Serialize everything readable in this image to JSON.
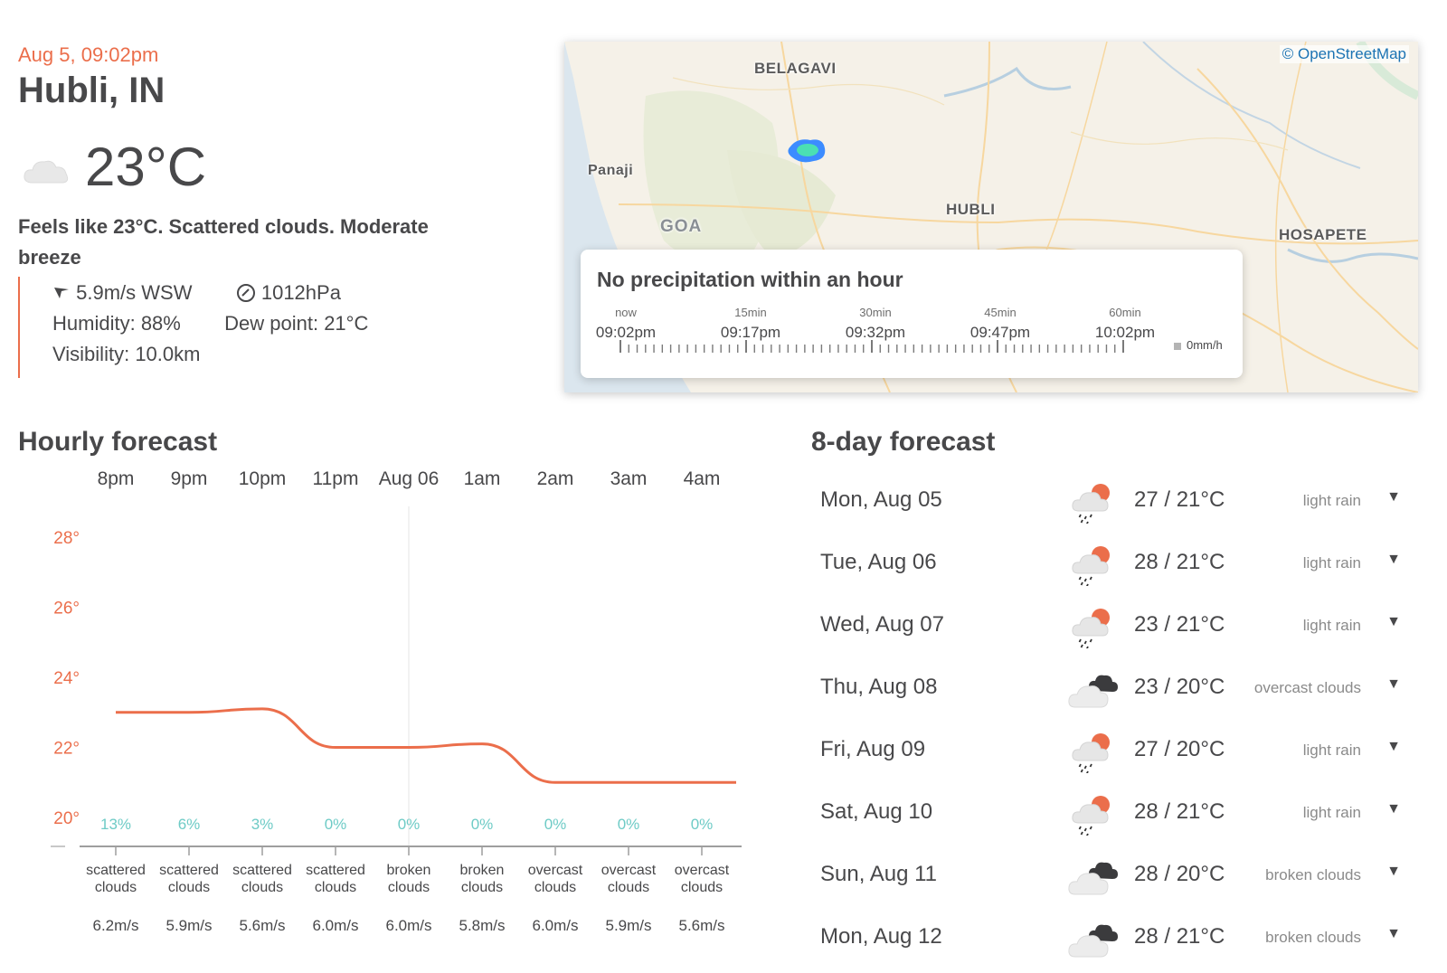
{
  "current": {
    "datetime": "Aug 5, 09:02pm",
    "city": "Hubli, IN",
    "icon": "cloud-icon",
    "temp": "23°C",
    "feels_like": "Feels like 23°C. Scattered clouds. Moderate breeze",
    "wind": "5.9m/s WSW",
    "pressure": "1012hPa",
    "humidity_label": "Humidity:",
    "humidity": "88%",
    "dew_label": "Dew point:",
    "dew": "21°C",
    "visibility_label": "Visibility:",
    "visibility": "10.0km"
  },
  "map": {
    "attribution": "© OpenStreetMap",
    "labels": [
      "BELAGAVI",
      "Panaji",
      "GOA",
      "HUBLI",
      "HOSAPETE"
    ]
  },
  "precipitation": {
    "title": "No precipitation within an hour",
    "steps": [
      {
        "label": "now",
        "time": "09:02pm"
      },
      {
        "label": "15min",
        "time": "09:17pm"
      },
      {
        "label": "30min",
        "time": "09:32pm"
      },
      {
        "label": "45min",
        "time": "09:47pm"
      },
      {
        "label": "60min",
        "time": "10:02pm"
      }
    ],
    "legend": "0mm/h"
  },
  "hourly": {
    "title": "Hourly forecast"
  },
  "daily": {
    "title": "8-day forecast",
    "days": [
      {
        "date": "Mon, Aug 05",
        "temp": "27 / 21°C",
        "desc": "light rain",
        "icon": "rain-icon"
      },
      {
        "date": "Tue, Aug 06",
        "temp": "28 / 21°C",
        "desc": "light rain",
        "icon": "rain-icon"
      },
      {
        "date": "Wed, Aug 07",
        "temp": "23 / 21°C",
        "desc": "light rain",
        "icon": "rain-icon"
      },
      {
        "date": "Thu, Aug 08",
        "temp": "23 / 20°C",
        "desc": "overcast clouds",
        "icon": "overcast-clouds-icon"
      },
      {
        "date": "Fri, Aug 09",
        "temp": "27 / 20°C",
        "desc": "light rain",
        "icon": "rain-icon"
      },
      {
        "date": "Sat, Aug 10",
        "temp": "28 / 21°C",
        "desc": "light rain",
        "icon": "rain-icon"
      },
      {
        "date": "Sun, Aug 11",
        "temp": "28 / 20°C",
        "desc": "broken clouds",
        "icon": "broken-clouds-icon"
      },
      {
        "date": "Mon, Aug 12",
        "temp": "28 / 21°C",
        "desc": "broken clouds",
        "icon": "broken-clouds-icon"
      }
    ]
  },
  "colors": {
    "accent": "#eb6e4b",
    "precip_text": "#6ecbc6",
    "text": "#48484a"
  },
  "chart_data": {
    "type": "line",
    "x": [
      "8pm",
      "9pm",
      "10pm",
      "11pm",
      "Aug 06",
      "1am",
      "2am",
      "3am",
      "4am"
    ],
    "series": [
      {
        "values": [
          23,
          23,
          23.1,
          22,
          22,
          22.1,
          21,
          21,
          21
        ]
      }
    ],
    "y_ticks": [
      "28°",
      "26°",
      "24°",
      "22°",
      "20°"
    ],
    "ylim": [
      20,
      28
    ],
    "precipitation_probability": [
      "13%",
      "6%",
      "3%",
      "0%",
      "0%",
      "0%",
      "0%",
      "0%",
      "0%"
    ],
    "conditions": [
      [
        "scattered",
        "clouds"
      ],
      [
        "scattered",
        "clouds"
      ],
      [
        "scattered",
        "clouds"
      ],
      [
        "scattered",
        "clouds"
      ],
      [
        "broken",
        "clouds"
      ],
      [
        "broken",
        "clouds"
      ],
      [
        "overcast",
        "clouds"
      ],
      [
        "overcast",
        "clouds"
      ],
      [
        "overcast",
        "clouds"
      ]
    ],
    "wind": [
      "6.2m/s",
      "5.9m/s",
      "5.6m/s",
      "6.0m/s",
      "6.0m/s",
      "5.8m/s",
      "6.0m/s",
      "5.9m/s",
      "5.6m/s"
    ],
    "day_divider": "Aug 06",
    "grid": false
  }
}
